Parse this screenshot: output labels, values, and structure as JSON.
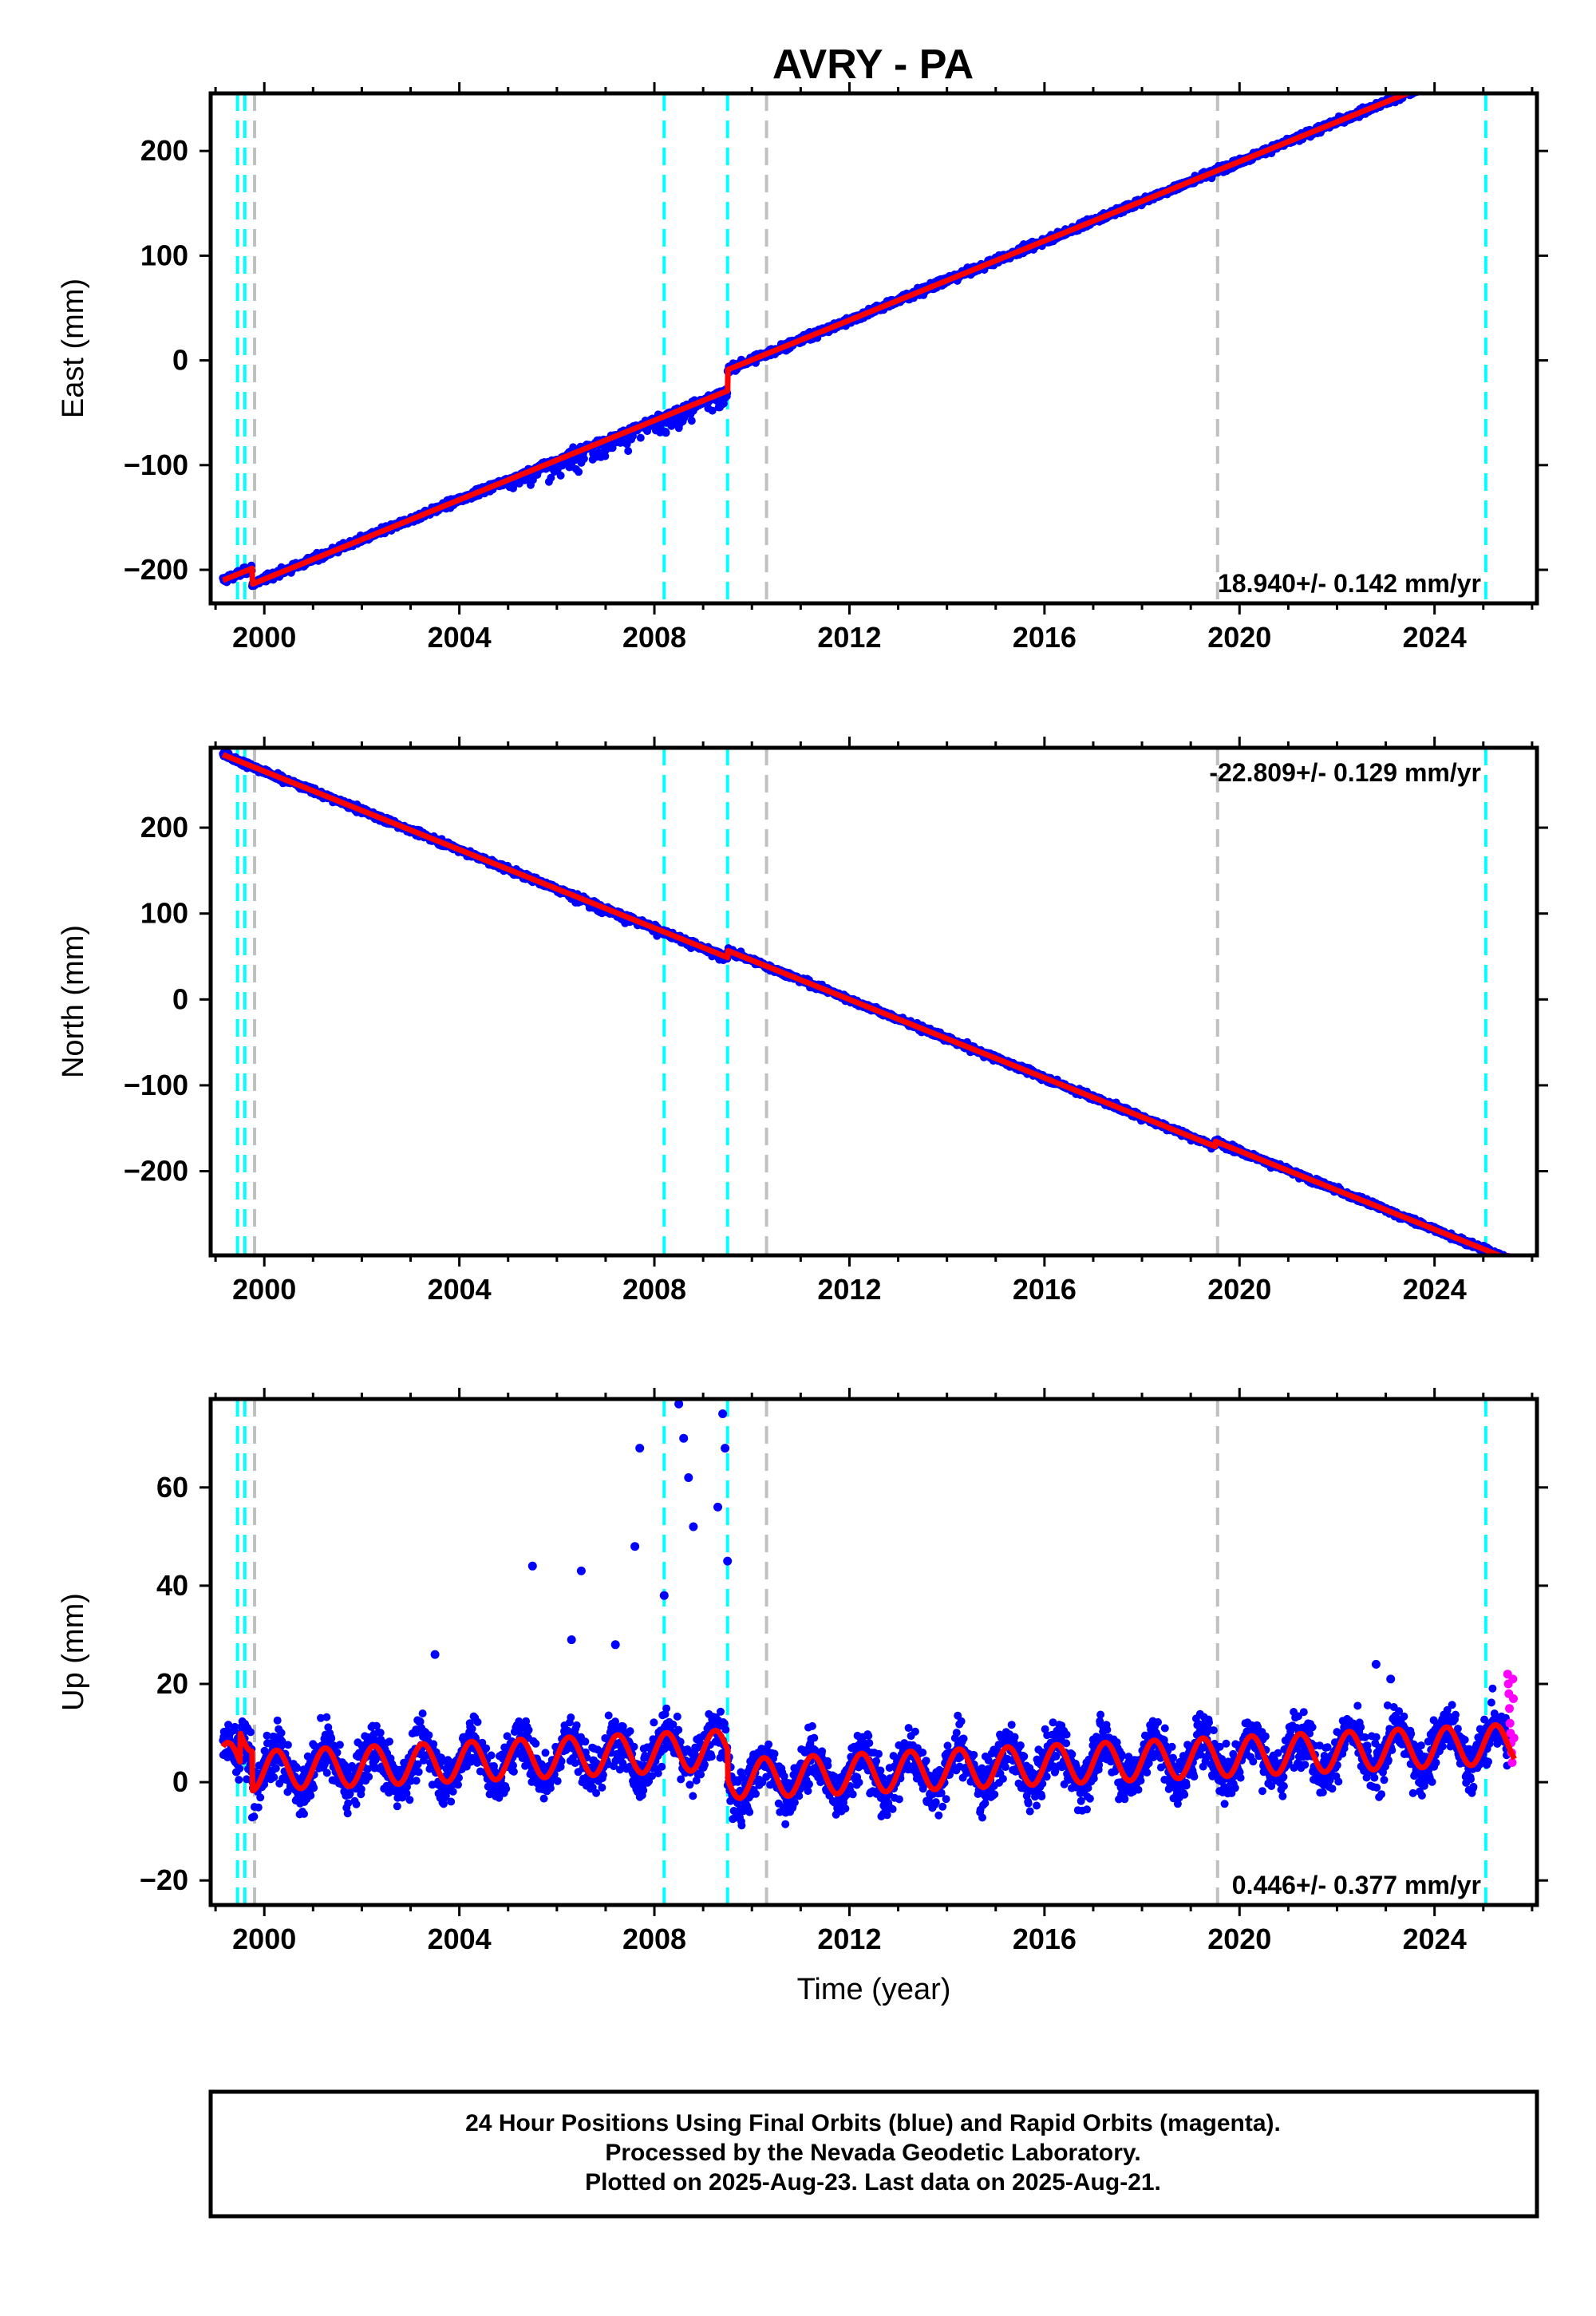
{
  "title": "AVRY - PA",
  "footer": {
    "line1": "24 Hour Positions Using Final Orbits (blue) and Rapid Orbits (magenta).",
    "line2": "Processed by the Nevada Geodetic Laboratory.",
    "line3": "Plotted on 2025-Aug-23. Last data on 2025-Aug-21."
  },
  "colors": {
    "final_orbits": "#0000ff",
    "rapid_orbits": "#ff00ff",
    "model_fit": "#ff0000",
    "equipment_change": "#00ffff",
    "earthquake": "#c0c0c0"
  },
  "chart_data": [
    {
      "type": "scatter",
      "name": "east",
      "xlabel": "",
      "ylabel": "East (mm)",
      "xlim": [
        1998.9,
        2026.1
      ],
      "ylim": [
        -232,
        255
      ],
      "xticks": [
        2000,
        2004,
        2008,
        2012,
        2016,
        2020,
        2024
      ],
      "yticks": [
        -200,
        -100,
        0,
        100,
        200
      ],
      "rate_text": "18.940+/- 0.142 mm/yr",
      "rate_position": "bottom-right",
      "grid": false,
      "steps": [
        [
          1999.3,
          0
        ],
        [
          1999.75,
          -15
        ],
        [
          2009.5,
          20
        ]
      ],
      "offsets": [
        0,
        -210,
        18.94,
        0,
        0,
        0
      ],
      "noise": 4,
      "spikes": [
        [
          2005,
          2008.4,
          18
        ],
        [
          2008.2,
          2009.5,
          20
        ]
      ],
      "final_orbits_range": [
        1999.15,
        2025.5
      ],
      "rapid_orbits_range": [
        2025.5,
        2025.64
      ]
    },
    {
      "type": "scatter",
      "name": "north",
      "xlabel": "",
      "ylabel": "North (mm)",
      "xlim": [
        1998.9,
        2026.1
      ],
      "ylim": [
        -298,
        293
      ],
      "xticks": [
        2000,
        2004,
        2008,
        2012,
        2016,
        2020,
        2024
      ],
      "yticks": [
        -200,
        -100,
        0,
        100,
        200
      ],
      "rate_text": "-22.809+/- 0.129 mm/yr",
      "rate_position": "top-right",
      "grid": false,
      "steps": [
        [
          2009.5,
          8
        ],
        [
          2019.5,
          6
        ]
      ],
      "offsets": [
        0,
        285,
        -22.809,
        0,
        0,
        0
      ],
      "noise": 4,
      "spikes": [
        [
          2006,
          2009.5,
          8
        ]
      ],
      "final_orbits_range": [
        1999.15,
        2025.5
      ],
      "rapid_orbits_range": [
        2025.5,
        2025.64
      ]
    },
    {
      "type": "scatter",
      "name": "up",
      "xlabel": "Time (year)",
      "ylabel": "Up (mm)",
      "xlim": [
        1998.9,
        2026.1
      ],
      "ylim": [
        -25,
        78
      ],
      "xticks": [
        2000,
        2004,
        2008,
        2012,
        2016,
        2020,
        2024
      ],
      "yticks": [
        -20,
        0,
        20,
        40,
        60
      ],
      "rate_text": "0.446+/- 0.377 mm/yr",
      "rate_position": "bottom-right",
      "grid": false,
      "steps": [
        [
          1999.5,
          6
        ],
        [
          1999.75,
          -8
        ],
        [
          2009.5,
          -6
        ]
      ],
      "offsets": [
        0,
        4,
        0.446,
        0,
        4,
        0
      ],
      "noise": 6,
      "outliers": [
        [
          2005.5,
          44
        ],
        [
          2006.5,
          43
        ],
        [
          2007.7,
          68
        ],
        [
          2007.6,
          48
        ],
        [
          2008.2,
          38
        ],
        [
          2008.5,
          77
        ],
        [
          2008.6,
          70
        ],
        [
          2008.7,
          62
        ],
        [
          2008.8,
          52
        ],
        [
          2009.4,
          75
        ],
        [
          2009.45,
          68
        ],
        [
          2009.3,
          56
        ],
        [
          2009.5,
          45
        ],
        [
          2007.2,
          28
        ],
        [
          2006.3,
          29
        ],
        [
          2003.5,
          26
        ],
        [
          2022.8,
          24
        ],
        [
          2023.1,
          21
        ]
      ],
      "final_orbits_range": [
        1999.15,
        2025.5
      ],
      "rapid_orbits_range": [
        2025.5,
        2025.64
      ],
      "rapid_values": [
        22,
        20,
        18,
        15,
        12,
        10,
        8,
        6,
        4,
        21,
        17,
        9
      ]
    }
  ],
  "vertical_lines": {
    "equipment_change": [
      1999.45,
      1999.6,
      2008.2,
      2009.5,
      2025.05
    ],
    "earthquake": [
      1999.8,
      2010.3,
      2019.55
    ]
  }
}
